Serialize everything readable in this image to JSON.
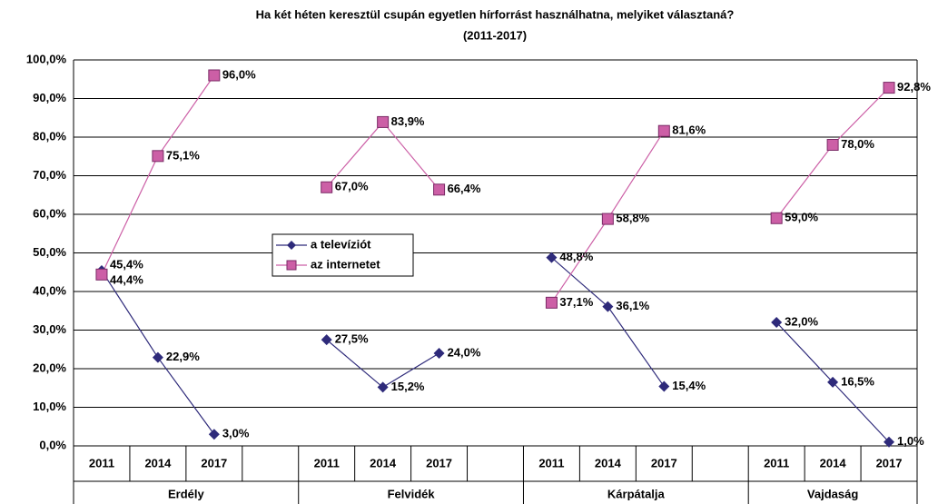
{
  "chart_data": {
    "type": "line",
    "title": "Ha két héten keresztül csupán egyetlen hírforrást használhatna, melyiket választaná?",
    "subtitle": "(2011-2017)",
    "categories": [
      "2011",
      "2014",
      "2017",
      null,
      "2011",
      "2014",
      "2017",
      null,
      "2011",
      "2014",
      "2017",
      null,
      "2011",
      "2014",
      "2017"
    ],
    "groups": [
      "Erdély",
      "Felvidék",
      "Kárpátalja",
      "Vajdaság"
    ],
    "series": [
      {
        "name": "a televíziót",
        "color": "#2e2a7a",
        "values": [
          45.4,
          22.9,
          3.0,
          null,
          27.5,
          15.2,
          24.0,
          null,
          48.8,
          36.1,
          15.4,
          null,
          32.0,
          16.5,
          1.0
        ],
        "value_labels": [
          "45,4%",
          "22,9%",
          "3,0%",
          null,
          "27,5%",
          "15,2%",
          "24,0%",
          null,
          "48,8%",
          "36,1%",
          "15,4%",
          null,
          "32,0%",
          "16,5%",
          "1,0%"
        ]
      },
      {
        "name": "az internetet",
        "color": "#cc5fa6",
        "values": [
          44.4,
          75.1,
          96.0,
          null,
          67.0,
          83.9,
          66.4,
          null,
          37.1,
          58.8,
          81.6,
          null,
          59.0,
          78.0,
          92.8
        ],
        "value_labels": [
          "44,4%",
          "75,1%",
          "96,0%",
          null,
          "67,0%",
          "83,9%",
          "66,4%",
          null,
          "37,1%",
          "58,8%",
          "81,6%",
          null,
          "59,0%",
          "78,0%",
          "92,8%"
        ]
      }
    ],
    "ylim": [
      0,
      100
    ],
    "yticks": [
      {
        "value": 0,
        "label": "0,0%"
      },
      {
        "value": 10,
        "label": "10,0%"
      },
      {
        "value": 20,
        "label": "20,0%"
      },
      {
        "value": 30,
        "label": "30,0%"
      },
      {
        "value": 40,
        "label": "40,0%"
      },
      {
        "value": 50,
        "label": "50,0%"
      },
      {
        "value": 60,
        "label": "60,0%"
      },
      {
        "value": 70,
        "label": "70,0%"
      },
      {
        "value": 80,
        "label": "80,0%"
      },
      {
        "value": 90,
        "label": "90,0%"
      },
      {
        "value": 100,
        "label": "100,0%"
      }
    ],
    "grid": true,
    "legend": "center"
  }
}
